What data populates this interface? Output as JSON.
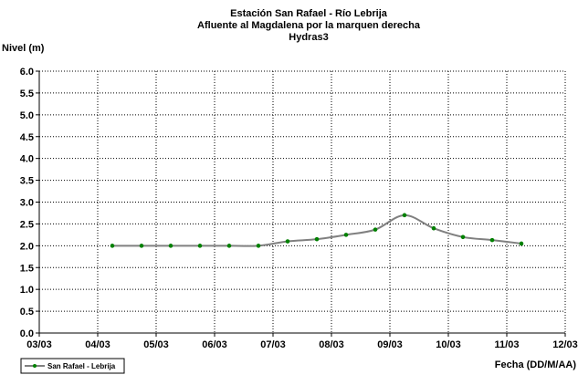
{
  "chart_data": {
    "type": "line",
    "title_lines": [
      "Estación San Rafael - Río Lebrija",
      "Afluente al Magdalena por la marquen derecha",
      "Hydras3"
    ],
    "ylabel": "Nivel (m)",
    "xlabel": "Fecha (DD/M/AA)",
    "ylim": [
      0,
      6
    ],
    "yticks": [
      0.0,
      0.5,
      1.0,
      1.5,
      2.0,
      2.5,
      3.0,
      3.5,
      4.0,
      4.5,
      5.0,
      5.5,
      6.0
    ],
    "ytick_labels": [
      "0.0",
      "0.5",
      "1.0",
      "1.5",
      "2.0",
      "2.5",
      "3.0",
      "3.5",
      "4.0",
      "4.5",
      "5.0",
      "5.5",
      "6.0"
    ],
    "xlim": [
      3,
      12
    ],
    "xticks": [
      3,
      4,
      5,
      6,
      7,
      8,
      9,
      10,
      11,
      12
    ],
    "xtick_labels": [
      "03/03",
      "04/03",
      "05/03",
      "06/03",
      "07/03",
      "08/03",
      "09/03",
      "10/03",
      "11/03",
      "12/03"
    ],
    "grid": true,
    "legend_position": "bottom-left",
    "series": [
      {
        "name": "San Rafael - Lebrija",
        "color": "#808080",
        "marker_color": "#008000",
        "x": [
          4.25,
          4.75,
          5.25,
          5.75,
          6.25,
          6.75,
          7.25,
          7.75,
          8.25,
          8.75,
          9.25,
          9.75,
          10.25,
          10.75,
          11.25
        ],
        "values": [
          2.0,
          2.0,
          2.0,
          2.0,
          2.0,
          2.0,
          2.1,
          2.15,
          2.25,
          2.37,
          2.7,
          2.4,
          2.2,
          2.13,
          2.05
        ]
      }
    ]
  }
}
